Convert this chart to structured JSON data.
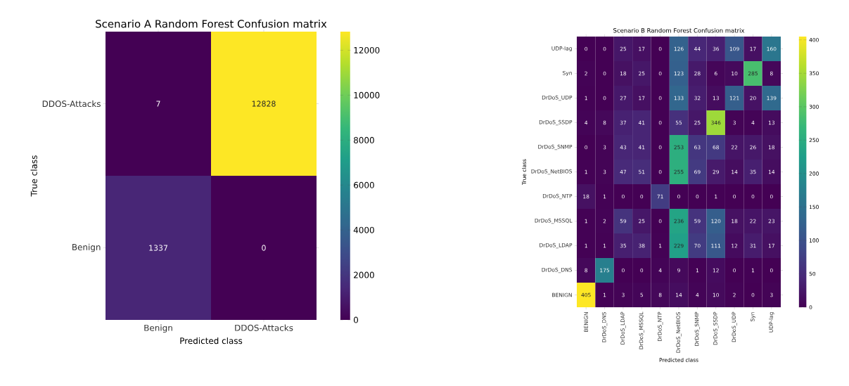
{
  "chart_data": [
    {
      "type": "heatmap",
      "title": "Scenario A Random Forest Confusion matrix",
      "xlabel": "Predicted class",
      "ylabel": "True class",
      "categories": [
        "Benign",
        "DDOS-Attacks"
      ],
      "y_categories": [
        "DDOS-Attacks",
        "Benign"
      ],
      "cells": [
        [
          7,
          12828
        ],
        [
          1337,
          0
        ]
      ],
      "clim": [
        0,
        12828
      ],
      "cticks": [
        0,
        2000,
        4000,
        6000,
        8000,
        10000,
        12000
      ],
      "data_labels": true
    },
    {
      "type": "heatmap",
      "title": "Scenario B Random Forest Confusion matrix",
      "xlabel": "Predicted class",
      "ylabel": "True class",
      "categories": [
        "BENIGN",
        "DrDoS_DNS",
        "DrDoS_LDAP",
        "DrDoS_MSSQL",
        "DrDoS_NTP",
        "DrDoS_NetBIOS",
        "DrDoS_SNMP",
        "DrDoS_SSDP",
        "DrDoS_UDP",
        "Syn",
        "UDP-lag"
      ],
      "y_categories": [
        "UDP-lag",
        "Syn",
        "DrDoS_UDP",
        "DrDoS_SSDP",
        "DrDoS_SNMP",
        "DrDoS_NetBIOS",
        "DrDoS_NTP",
        "DrDoS_MSSQL",
        "DrDoS_LDAP",
        "DrDoS_DNS",
        "BENIGN"
      ],
      "cells": [
        [
          0,
          0,
          25,
          17,
          0,
          126,
          44,
          36,
          109,
          17,
          160
        ],
        [
          2,
          0,
          18,
          25,
          0,
          123,
          28,
          6,
          10,
          285,
          8
        ],
        [
          1,
          0,
          27,
          17,
          0,
          133,
          32,
          13,
          121,
          20,
          139
        ],
        [
          4,
          8,
          37,
          41,
          0,
          55,
          25,
          346,
          3,
          4,
          13
        ],
        [
          0,
          3,
          43,
          41,
          0,
          253,
          63,
          68,
          22,
          26,
          18
        ],
        [
          1,
          3,
          47,
          51,
          0,
          255,
          69,
          29,
          14,
          35,
          14
        ],
        [
          18,
          1,
          0,
          0,
          71,
          0,
          0,
          1,
          0,
          0,
          0
        ],
        [
          1,
          2,
          59,
          25,
          0,
          236,
          59,
          120,
          18,
          22,
          23
        ],
        [
          1,
          1,
          35,
          38,
          1,
          229,
          70,
          111,
          12,
          31,
          17
        ],
        [
          8,
          175,
          0,
          0,
          4,
          9,
          1,
          12,
          0,
          1,
          0
        ],
        [
          405,
          1,
          3,
          5,
          8,
          14,
          4,
          10,
          2,
          0,
          3
        ]
      ],
      "clim": [
        0,
        405
      ],
      "cticks": [
        0,
        50,
        100,
        150,
        200,
        250,
        300,
        350,
        400
      ],
      "data_labels": true
    }
  ]
}
